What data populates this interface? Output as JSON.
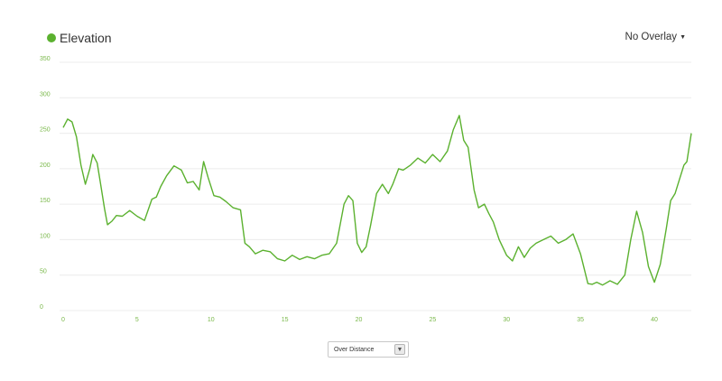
{
  "legend": {
    "label": "Elevation",
    "color": "#5bb12f"
  },
  "overlay": {
    "label": "No Overlay",
    "caret_icon": "caret-down-icon"
  },
  "selector": {
    "value": "Over Distance",
    "arrow_icon": "chevron-down-icon"
  },
  "colors": {
    "line": "#5bb12f",
    "tick_label": "#7ab84a",
    "grid": "#ececec"
  },
  "chart_data": {
    "type": "line",
    "xlim": [
      0,
      42.5
    ],
    "ylim": [
      0,
      350
    ],
    "x_ticks": [
      0,
      5,
      10,
      15,
      20,
      25,
      30,
      35,
      40
    ],
    "y_ticks": [
      0,
      50,
      100,
      150,
      200,
      250,
      300,
      350
    ],
    "grid": true,
    "series": [
      {
        "x": [
          0,
          0.3,
          0.6,
          0.9,
          1.2,
          1.5,
          1.8,
          2.0,
          2.3,
          2.5,
          2.8,
          3.0,
          3.3,
          3.6,
          4.0,
          4.5,
          5.0,
          5.5,
          6.0,
          6.3,
          6.6,
          7.0,
          7.5,
          8.0,
          8.4,
          8.8,
          9.2,
          9.5,
          9.8,
          10.2,
          10.6,
          11.0,
          11.5,
          12.0,
          12.3,
          12.6,
          13.0,
          13.5,
          14.0,
          14.5,
          15.0,
          15.5,
          16.0,
          16.5,
          17.0,
          17.5,
          18.0,
          18.5,
          19.0,
          19.3,
          19.6,
          19.9,
          20.2,
          20.5,
          20.8,
          21.2,
          21.6,
          22.0,
          22.3,
          22.7,
          23.0,
          23.5,
          24.0,
          24.5,
          25.0,
          25.5,
          26.0,
          26.4,
          26.8,
          27.1,
          27.4,
          27.8,
          28.1,
          28.5,
          28.8,
          29.1,
          29.5,
          30.0,
          30.4,
          30.8,
          31.2,
          31.6,
          32.0,
          32.5,
          33.0,
          33.5,
          34.0,
          34.5,
          35.0,
          35.5,
          35.8,
          36.1,
          36.5,
          37.0,
          37.5,
          38.0,
          38.4,
          38.8,
          39.2,
          39.6,
          40.0,
          40.4,
          40.8,
          41.1,
          41.4,
          41.7,
          42.0,
          42.2,
          42.5
        ],
        "y": [
          258,
          270,
          266,
          245,
          205,
          178,
          200,
          220,
          208,
          183,
          143,
          121,
          126,
          134,
          133,
          141,
          133,
          127,
          157,
          160,
          175,
          190,
          204,
          198,
          180,
          182,
          170,
          210,
          188,
          162,
          160,
          154,
          145,
          142,
          95,
          90,
          80,
          85,
          83,
          73,
          70,
          78,
          72,
          76,
          73,
          78,
          80,
          95,
          150,
          162,
          155,
          95,
          82,
          90,
          120,
          165,
          178,
          165,
          178,
          200,
          198,
          205,
          215,
          208,
          220,
          210,
          225,
          255,
          275,
          240,
          230,
          170,
          145,
          150,
          137,
          125,
          100,
          78,
          70,
          90,
          75,
          88,
          95,
          100,
          105,
          95,
          100,
          108,
          80,
          38,
          37,
          40,
          36,
          42,
          37,
          50,
          100,
          140,
          110,
          62,
          40,
          65,
          115,
          155,
          165,
          185,
          205,
          210,
          250
        ]
      }
    ]
  }
}
